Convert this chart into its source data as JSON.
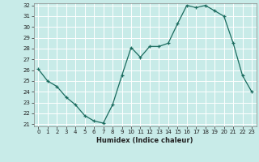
{
  "x": [
    0,
    1,
    2,
    3,
    4,
    5,
    6,
    7,
    8,
    9,
    10,
    11,
    12,
    13,
    14,
    15,
    16,
    17,
    18,
    19,
    20,
    21,
    22,
    23
  ],
  "y": [
    26.1,
    25.0,
    24.5,
    23.5,
    22.8,
    21.8,
    21.3,
    21.1,
    22.8,
    25.5,
    28.1,
    27.2,
    28.2,
    28.2,
    28.5,
    30.3,
    32.0,
    31.8,
    32.0,
    31.5,
    31.0,
    28.5,
    25.5,
    24.0
  ],
  "xlabel": "Humidex (Indice chaleur)",
  "ylim_min": 21,
  "ylim_max": 32,
  "xlim_min": -0.5,
  "xlim_max": 23.5,
  "yticks": [
    21,
    22,
    23,
    24,
    25,
    26,
    27,
    28,
    29,
    30,
    31,
    32
  ],
  "xticks": [
    0,
    1,
    2,
    3,
    4,
    5,
    6,
    7,
    8,
    9,
    10,
    11,
    12,
    13,
    14,
    15,
    16,
    17,
    18,
    19,
    20,
    21,
    22,
    23
  ],
  "line_color": "#1a6b5e",
  "marker_color": "#1a6b5e",
  "bg_color": "#c8ebe8",
  "grid_color": "#ffffff",
  "xlabel_fontsize": 6.0,
  "tick_fontsize": 5.0
}
